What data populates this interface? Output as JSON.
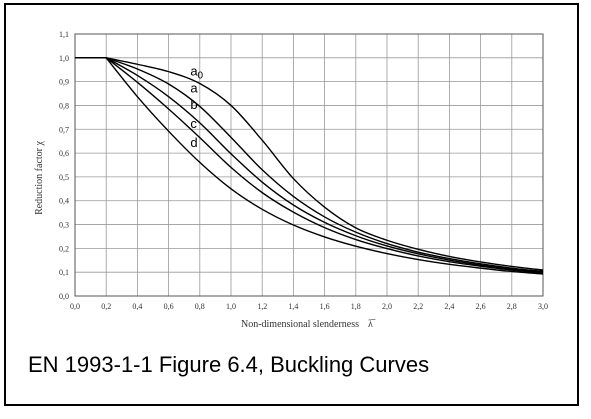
{
  "caption": "EN 1993-1-1 Figure 6.4, Buckling Curves",
  "chart_data": {
    "type": "line",
    "xlabel": "Non-dimensional slenderness",
    "xlabel_symbol": "λ̅",
    "ylabel": "Reduction factor χ",
    "xlim": [
      0.0,
      3.0
    ],
    "ylim": [
      0.0,
      1.1
    ],
    "grid": true,
    "x_ticks": [
      "0,0",
      "0,2",
      "0,4",
      "0,6",
      "0,8",
      "1,0",
      "1,2",
      "1,4",
      "1,6",
      "1,8",
      "2,0",
      "2,2",
      "2,4",
      "2,6",
      "2,8",
      "3,0"
    ],
    "y_ticks": [
      "0,0",
      "0,1",
      "0,2",
      "0,3",
      "0,4",
      "0,5",
      "0,6",
      "0,7",
      "0,8",
      "0,9",
      "1,0",
      "1,1"
    ],
    "curve_labels": [
      "a0",
      "a",
      "b",
      "c",
      "d"
    ],
    "series": [
      {
        "name": "a0",
        "x": [
          0,
          0.2,
          0.4,
          0.6,
          0.8,
          1.0,
          1.2,
          1.4,
          1.6,
          1.8,
          2.0,
          2.2,
          2.4,
          2.6,
          2.8,
          3.0
        ],
        "values": [
          1.0,
          1.0,
          0.973,
          0.942,
          0.892,
          0.8,
          0.654,
          0.493,
          0.373,
          0.286,
          0.234,
          0.196,
          0.166,
          0.143,
          0.124,
          0.109
        ]
      },
      {
        "name": "a",
        "x": [
          0,
          0.2,
          0.4,
          0.6,
          0.8,
          1.0,
          1.2,
          1.4,
          1.6,
          1.8,
          2.0,
          2.2,
          2.4,
          2.6,
          2.8,
          3.0
        ],
        "values": [
          1.0,
          1.0,
          0.953,
          0.89,
          0.796,
          0.666,
          0.53,
          0.418,
          0.332,
          0.268,
          0.22,
          0.184,
          0.157,
          0.135,
          0.117,
          0.103
        ]
      },
      {
        "name": "b",
        "x": [
          0,
          0.2,
          0.4,
          0.6,
          0.8,
          1.0,
          1.2,
          1.4,
          1.6,
          1.8,
          2.0,
          2.2,
          2.4,
          2.6,
          2.8,
          3.0
        ],
        "values": [
          1.0,
          1.0,
          0.926,
          0.837,
          0.727,
          0.597,
          0.478,
          0.382,
          0.309,
          0.253,
          0.21,
          0.177,
          0.151,
          0.13,
          0.113,
          0.1
        ]
      },
      {
        "name": "c",
        "x": [
          0,
          0.2,
          0.4,
          0.6,
          0.8,
          1.0,
          1.2,
          1.4,
          1.6,
          1.8,
          2.0,
          2.2,
          2.4,
          2.6,
          2.8,
          3.0
        ],
        "values": [
          1.0,
          1.0,
          0.897,
          0.785,
          0.665,
          0.54,
          0.434,
          0.352,
          0.287,
          0.237,
          0.199,
          0.168,
          0.144,
          0.125,
          0.109,
          0.096
        ]
      },
      {
        "name": "d",
        "x": [
          0,
          0.2,
          0.4,
          0.6,
          0.8,
          1.0,
          1.2,
          1.4,
          1.6,
          1.8,
          2.0,
          2.2,
          2.4,
          2.6,
          2.8,
          3.0
        ],
        "values": [
          1.0,
          1.0,
          0.837,
          0.692,
          0.561,
          0.45,
          0.364,
          0.298,
          0.248,
          0.209,
          0.178,
          0.153,
          0.133,
          0.117,
          0.103,
          0.092
        ]
      }
    ]
  }
}
